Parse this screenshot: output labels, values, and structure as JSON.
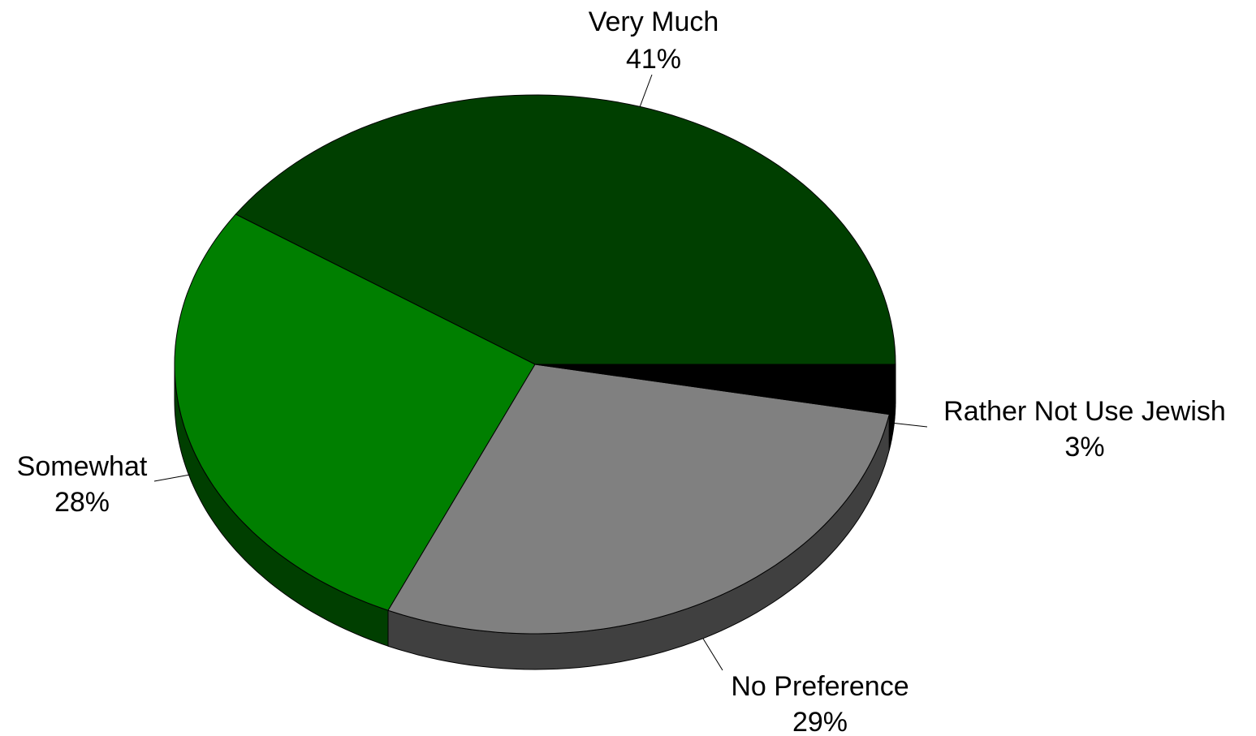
{
  "chart_data": {
    "type": "pie",
    "style": "3d",
    "slices": [
      {
        "label": "Very Much",
        "value": 41,
        "value_label": "41%",
        "color": "#003f00",
        "side_color": "#002a00"
      },
      {
        "label": "Rather Not Use Jewish",
        "value": 3,
        "value_label": "3%",
        "color": "#000000",
        "side_color": "#000000"
      },
      {
        "label": "No Preference",
        "value": 29,
        "value_label": "29%",
        "color": "#808080",
        "side_color": "#404040"
      },
      {
        "label": "Somewhat",
        "value": 28,
        "value_label": "28%",
        "color": "#007f00",
        "side_color": "#003f00"
      }
    ]
  }
}
